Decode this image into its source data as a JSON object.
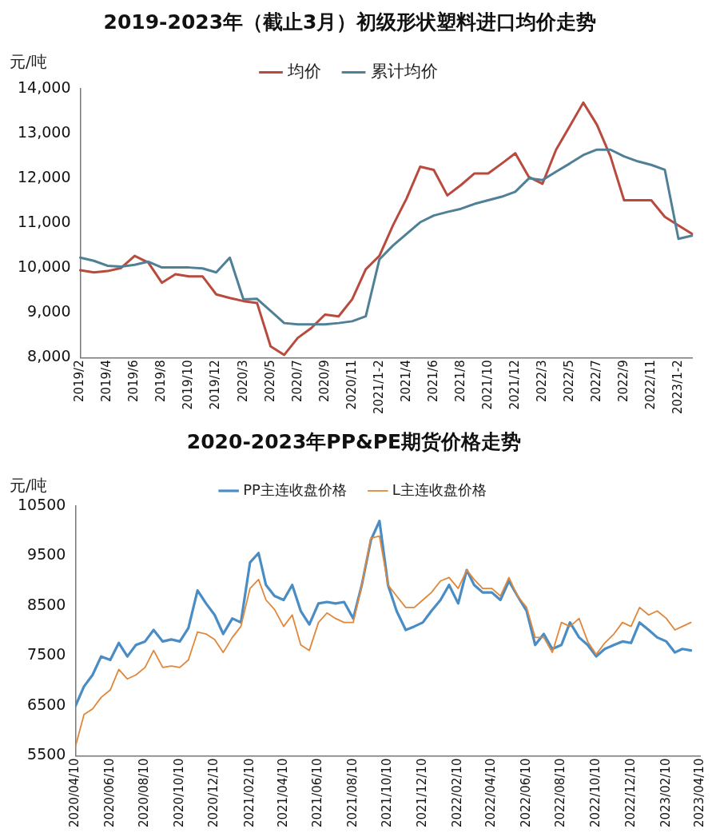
{
  "chart_data": [
    {
      "type": "line",
      "title": "2019-2023年（截止3月）初级形状塑料进口均价走势",
      "ylabel": "元/吨",
      "legend": "top",
      "categories": [
        "2019/2",
        null,
        "2019/4",
        null,
        "2019/6",
        null,
        "2019/8",
        null,
        "2019/10",
        null,
        "2019/12",
        null,
        "2020/3",
        null,
        "2020/5",
        null,
        "2020/7",
        null,
        "2020/9",
        null,
        "2020/11",
        null,
        "2021/1-2",
        null,
        "2021/4",
        null,
        "2021/6",
        null,
        "2021/8",
        null,
        "2021/10",
        null,
        "2021/12",
        null,
        "2022/3",
        null,
        "2022/5",
        null,
        "2022/7",
        null,
        "2022/9",
        null,
        "2022/11",
        null,
        "2023/1-2",
        null
      ],
      "ylim": [
        8000,
        14000
      ],
      "yticks": [
        {
          "value": 8000,
          "label": "8,000"
        },
        {
          "value": 9000,
          "label": "9,000"
        },
        {
          "value": 10000,
          "label": "10,000"
        },
        {
          "value": 11000,
          "label": "11,000"
        },
        {
          "value": 12000,
          "label": "12,000"
        },
        {
          "value": 13000,
          "label": "13,000"
        },
        {
          "value": 14000,
          "label": "14,000"
        }
      ],
      "series": [
        {
          "name": "均价",
          "color": "#b84a3e",
          "values": [
            9950,
            9900,
            9930,
            10000,
            10270,
            10120,
            9670,
            9860,
            9810,
            9810,
            9410,
            9330,
            9260,
            9220,
            8250,
            8060,
            8440,
            8660,
            8960,
            8920,
            9300,
            9970,
            10270,
            10950,
            11550,
            12260,
            12190,
            11620,
            11850,
            12110,
            12110,
            12330,
            12560,
            12030,
            11880,
            12640,
            13160,
            13690,
            13200,
            12490,
            11510,
            11510,
            11510,
            11140,
            10950,
            10760
          ]
        },
        {
          "name": "累计均价",
          "color": "#4f8095",
          "values": [
            10230,
            10160,
            10050,
            10030,
            10070,
            10140,
            10010,
            10010,
            10010,
            9990,
            9900,
            10230,
            9300,
            9310,
            9040,
            8770,
            8740,
            8740,
            8740,
            8770,
            8810,
            8920,
            10190,
            10500,
            10760,
            11020,
            11170,
            11250,
            11320,
            11430,
            11510,
            11590,
            11700,
            12000,
            11960,
            12150,
            12330,
            12520,
            12640,
            12640,
            12490,
            12380,
            12300,
            12190,
            10650,
            10720
          ]
        }
      ]
    },
    {
      "type": "line",
      "title": "2020-2023年PP&PE期货价格走势",
      "ylabel": "元/吨",
      "legend": "top",
      "x": [
        "2020-04-10",
        "2020-04-25",
        "2020-05-10",
        "2020-05-25",
        "2020-06-10",
        "2020-06-25",
        "2020-07-10",
        "2020-07-25",
        "2020-08-10",
        "2020-08-25",
        "2020-09-10",
        "2020-09-25",
        "2020-10-10",
        "2020-10-25",
        "2020-11-10",
        "2020-11-25",
        "2020-12-10",
        "2020-12-25",
        "2021-01-10",
        "2021-01-25",
        "2021-02-10",
        "2021-02-25",
        "2021-03-10",
        "2021-03-25",
        "2021-04-10",
        "2021-04-25",
        "2021-05-10",
        "2021-05-25",
        "2021-06-10",
        "2021-06-25",
        "2021-07-10",
        "2021-07-25",
        "2021-08-10",
        "2021-08-25",
        "2021-09-10",
        "2021-09-25",
        "2021-10-10",
        "2021-10-25",
        "2021-11-10",
        "2021-11-25",
        "2021-12-10",
        "2021-12-25",
        "2022-01-10",
        "2022-01-25",
        "2022-02-10",
        "2022-02-25",
        "2022-03-10",
        "2022-03-25",
        "2022-04-10",
        "2022-04-25",
        "2022-05-10",
        "2022-05-25",
        "2022-06-10",
        "2022-06-25",
        "2022-07-10",
        "2022-07-25",
        "2022-08-10",
        "2022-08-25",
        "2022-09-10",
        "2022-09-25",
        "2022-10-10",
        "2022-10-25",
        "2022-11-10",
        "2022-11-25",
        "2022-12-10",
        "2022-12-25",
        "2023-01-10",
        "2023-01-25",
        "2023-02-10",
        "2023-02-25",
        "2023-03-10",
        "2023-03-25"
      ],
      "xlim": [
        "2020-04-10",
        "2023-04-10"
      ],
      "xticks": [
        {
          "value": "2020-04-10",
          "label": "2020/04/10"
        },
        {
          "value": "2020-06-10",
          "label": "2020/06/10"
        },
        {
          "value": "2020-08-10",
          "label": "2020/08/10"
        },
        {
          "value": "2020-10-10",
          "label": "2020/10/10"
        },
        {
          "value": "2020-12-10",
          "label": "2020/12/10"
        },
        {
          "value": "2021-02-10",
          "label": "2021/02/10"
        },
        {
          "value": "2021-04-10",
          "label": "2021/04/10"
        },
        {
          "value": "2021-06-10",
          "label": "2021/06/10"
        },
        {
          "value": "2021-08-10",
          "label": "2021/08/10"
        },
        {
          "value": "2021-10-10",
          "label": "2021/10/10"
        },
        {
          "value": "2021-12-10",
          "label": "2021/12/10"
        },
        {
          "value": "2022-02-10",
          "label": "2022/02/10"
        },
        {
          "value": "2022-04-10",
          "label": "2022/04/10"
        },
        {
          "value": "2022-06-10",
          "label": "2022/06/10"
        },
        {
          "value": "2022-08-10",
          "label": "2022/08/10"
        },
        {
          "value": "2022-10-10",
          "label": "2022/10/10"
        },
        {
          "value": "2022-12-10",
          "label": "2022/12/10"
        },
        {
          "value": "2023-02-10",
          "label": "2023/02/10"
        },
        {
          "value": "2023-04-10",
          "label": "2023/04/10"
        }
      ],
      "ylim": [
        5500,
        10500
      ],
      "yticks": [
        5500,
        6500,
        7500,
        8500,
        9500,
        10500
      ],
      "series": [
        {
          "name": "PP主连收盘价格",
          "color": "#4a8cc4",
          "values": [
            6500,
            6890,
            7120,
            7490,
            7420,
            7760,
            7490,
            7720,
            7790,
            8020,
            7790,
            7830,
            7790,
            8060,
            8810,
            8550,
            8320,
            7940,
            8250,
            8170,
            9370,
            9560,
            8920,
            8700,
            8620,
            8920,
            8400,
            8130,
            8550,
            8580,
            8550,
            8580,
            8250,
            8920,
            9820,
            10200,
            8920,
            8400,
            8020,
            8090,
            8170,
            8400,
            8620,
            8920,
            8550,
            9220,
            8920,
            8770,
            8770,
            8620,
            9000,
            8700,
            8400,
            7720,
            7940,
            7640,
            7720,
            8170,
            7870,
            7720,
            7490,
            7640,
            7720,
            7790,
            7760,
            8170,
            8020,
            7870,
            7790,
            7570,
            7640,
            7610
          ]
        },
        {
          "name": "L主连收盘价格",
          "color": "#e0873a",
          "values": [
            5690,
            6330,
            6440,
            6670,
            6820,
            7230,
            7040,
            7120,
            7270,
            7610,
            7270,
            7300,
            7270,
            7420,
            7980,
            7940,
            7830,
            7570,
            7870,
            8090,
            8850,
            9030,
            8620,
            8430,
            8090,
            8320,
            7720,
            7610,
            8170,
            8360,
            8250,
            8170,
            8170,
            8920,
            9860,
            9900,
            8920,
            8700,
            8470,
            8470,
            8620,
            8770,
            9000,
            9070,
            8850,
            9220,
            9030,
            8850,
            8850,
            8700,
            9070,
            8700,
            8470,
            7870,
            7870,
            7570,
            8170,
            8090,
            8250,
            7790,
            7530,
            7760,
            7940,
            8170,
            8090,
            8470,
            8320,
            8400,
            8250,
            8020,
            8090,
            8170
          ]
        }
      ]
    }
  ]
}
